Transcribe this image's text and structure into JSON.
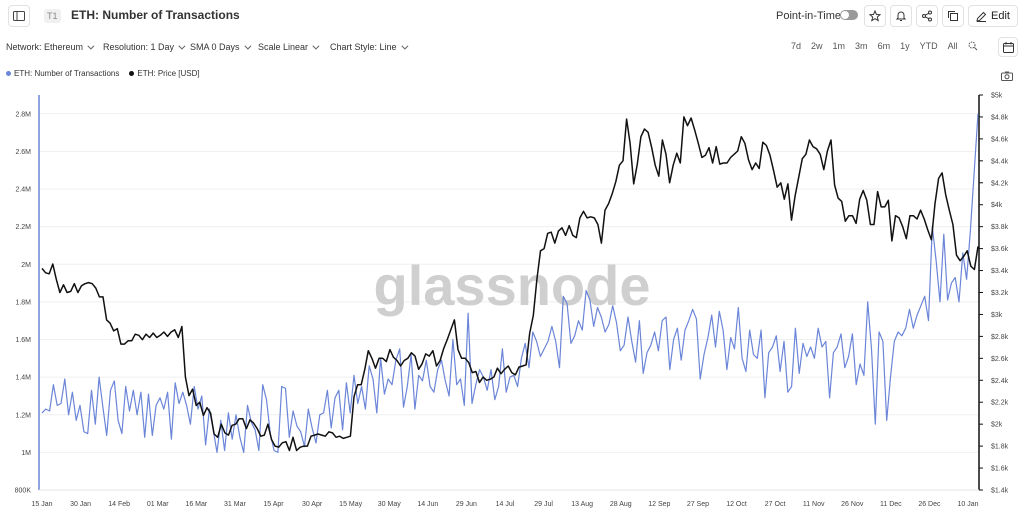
{
  "header": {
    "tier_badge": "T1",
    "title": "ETH: Number of Transactions",
    "point_in_time_label": "Point-in-Time",
    "edit_label": "Edit"
  },
  "toolbar": {
    "network": "Network: Ethereum",
    "resolution": "Resolution: 1 Day",
    "sma": "SMA 0 Days",
    "scale": "Scale Linear",
    "chart_style": "Chart Style: Line",
    "ranges": [
      "7d",
      "2w",
      "1m",
      "3m",
      "6m",
      "1y",
      "YTD",
      "All"
    ]
  },
  "colors": {
    "transactions": "#6b85d8",
    "price": "#111111",
    "accent": "#5b7be0"
  },
  "icons": [
    "sidebar-icon",
    "star-icon",
    "bell-icon",
    "share-icon",
    "copy-icon",
    "pencil-icon",
    "zoom-icon",
    "calendar-icon",
    "camera-icon"
  ],
  "watermark": "glassnode",
  "chart_data": {
    "type": "line",
    "x_labels": [
      "15 Jan",
      "30 Jan",
      "14 Feb",
      "01 Mar",
      "16 Mar",
      "31 Mar",
      "15 Apr",
      "30 Apr",
      "15 May",
      "30 May",
      "14 Jun",
      "29 Jun",
      "14 Jul",
      "29 Jul",
      "13 Aug",
      "28 Aug",
      "12 Sep",
      "27 Sep",
      "12 Oct",
      "27 Oct",
      "11 Nov",
      "26 Nov",
      "11 Dec",
      "26 Dec",
      "10 Jan"
    ],
    "y_left_labels": [
      "800K",
      "1M",
      "1.2M",
      "1.4M",
      "1.6M",
      "1.8M",
      "2M",
      "2.2M",
      "2.4M",
      "2.6M",
      "2.8M"
    ],
    "y_right_labels": [
      "$1.4k",
      "$1.6k",
      "$1.8k",
      "$2k",
      "$2.2k",
      "$2.4k",
      "$2.6k",
      "$2.8k",
      "$3k",
      "$3.2k",
      "$3.4k",
      "$3.6k",
      "$3.8k",
      "$4k",
      "$4.2k",
      "$4.4k",
      "$4.6k",
      "$4.8k",
      "$5k"
    ],
    "ylim_left": [
      800000,
      2900000
    ],
    "ylim_right": [
      1400,
      5000
    ],
    "grid": true,
    "legend_position": "top-left",
    "series": [
      {
        "name": "ETH: Number of Transactions",
        "axis": "left",
        "values": [
          1210000,
          1230000,
          1220000,
          1360000,
          1250000,
          1260000,
          1390000,
          1200000,
          1320000,
          1170000,
          1250000,
          1110000,
          1100000,
          1330000,
          1150000,
          1400000,
          1240000,
          1090000,
          1330000,
          1380000,
          1170000,
          1100000,
          1350000,
          1220000,
          1330000,
          1200000,
          1320000,
          1080000,
          1310000,
          1090000,
          1250000,
          1290000,
          1230000,
          1320000,
          1070000,
          1370000,
          1260000,
          1320000,
          1250000,
          1150000,
          1350000,
          1230000,
          1300000,
          1040000,
          1230000,
          1120000,
          1000000,
          1170000,
          1010000,
          1210000,
          1070000,
          1200000,
          1080000,
          1000000,
          1250000,
          1160000,
          1120000,
          1010000,
          1360000,
          1280000,
          1100000,
          1010000,
          1000000,
          1350000,
          1340000,
          1080000,
          1220000,
          1140000,
          1110000,
          1030000,
          1230000,
          1130000,
          1050000,
          1200000,
          1210000,
          1330000,
          1130000,
          1290000,
          1330000,
          1120000,
          1370000,
          1210000,
          1410000,
          1260000,
          1350000,
          1230000,
          1460000,
          1390000,
          1210000,
          1500000,
          1310000,
          1390000,
          1360000,
          1490000,
          1550000,
          1240000,
          1350000,
          1520000,
          1230000,
          1410000,
          1380000,
          1490000,
          1350000,
          1320000,
          1440000,
          1490000,
          1380000,
          1300000,
          1600000,
          1360000,
          1390000,
          1250000,
          1740000,
          1260000,
          1360000,
          1440000,
          1400000,
          1330000,
          1440000,
          1280000,
          1350000,
          1550000,
          1320000,
          1400000,
          1410000,
          1350000,
          1500000,
          1580000,
          1450000,
          1640000,
          1590000,
          1510000,
          1550000,
          1590000,
          1670000,
          1590000,
          1450000,
          1830000,
          1790000,
          1580000,
          1620000,
          1700000,
          1650000,
          1860000,
          1810000,
          1670000,
          1770000,
          1720000,
          1640000,
          1680000,
          1780000,
          1690000,
          1540000,
          1570000,
          1720000,
          1590000,
          1480000,
          1700000,
          1420000,
          1530000,
          1570000,
          1640000,
          1540000,
          1700000,
          1720000,
          1440000,
          1600000,
          1660000,
          1490000,
          1650000,
          1700000,
          1760000,
          1710000,
          1390000,
          1520000,
          1610000,
          1730000,
          1560000,
          1750000,
          1650000,
          1440000,
          1610000,
          1550000,
          1770000,
          1500000,
          1430000,
          1650000,
          1520000,
          1500000,
          1650000,
          1290000,
          1530000,
          1560000,
          1620000,
          1430000,
          1590000,
          1320000,
          1350000,
          1660000,
          1420000,
          1580000,
          1510000,
          1560000,
          1500000,
          1660000,
          1560000,
          1590000,
          1290000,
          1530000,
          1560000,
          1630000,
          1450000,
          1510000,
          1630000,
          1360000,
          1470000,
          1410000,
          1800000,
          1550000,
          1150000,
          1640000,
          1590000,
          1170000,
          1400000,
          1590000,
          1640000,
          1620000,
          1660000,
          1760000,
          1660000,
          1730000,
          1780000,
          1830000,
          1700000,
          2200000,
          2020000,
          1800000,
          2160000,
          1810000,
          1900000,
          1930000,
          1800000,
          2060000,
          1920000,
          2180000,
          2490000,
          2800000
        ]
      },
      {
        "name": "ETH: Price [USD]",
        "axis": "right",
        "values": [
          3420,
          3380,
          3370,
          3460,
          3320,
          3200,
          3270,
          3200,
          3210,
          3280,
          3200,
          3260,
          3280,
          3290,
          3280,
          3240,
          3160,
          3160,
          2950,
          2920,
          2850,
          2870,
          2730,
          2730,
          2760,
          2760,
          2820,
          2810,
          2770,
          2820,
          2790,
          2830,
          2790,
          2810,
          2840,
          2800,
          2840,
          2860,
          2790,
          2890,
          2430,
          2260,
          2320,
          2170,
          2200,
          2080,
          2150,
          2100,
          1910,
          1880,
          2000,
          1920,
          1900,
          1990,
          2000,
          2050,
          2050,
          1960,
          2040,
          2010,
          1960,
          1890,
          1900,
          2000,
          1860,
          1800,
          1790,
          1830,
          1840,
          1760,
          1880,
          1760,
          1790,
          1800,
          1800,
          1890,
          1900,
          1910,
          1900,
          1890,
          1930,
          1920,
          1880,
          1890,
          1870,
          1880,
          1890,
          2250,
          2360,
          2360,
          2500,
          2670,
          2600,
          2510,
          2600,
          2600,
          2570,
          2680,
          2610,
          2580,
          2530,
          2580,
          2600,
          2650,
          2620,
          2500,
          2550,
          2640,
          2620,
          2670,
          2530,
          2580,
          2690,
          2770,
          2860,
          2950,
          2680,
          2600,
          2600,
          2560,
          2470,
          2480,
          2380,
          2430,
          2400,
          2410,
          2430,
          2510,
          2460,
          2500,
          2530,
          2470,
          2450,
          2520,
          2530,
          2540,
          2830,
          2990,
          3320,
          3580,
          3600,
          3740,
          3750,
          3650,
          3760,
          3790,
          3720,
          3810,
          3720,
          3700,
          3880,
          3940,
          3880,
          3890,
          3880,
          3820,
          3650,
          3950,
          4010,
          4100,
          4210,
          4360,
          4400,
          4780,
          4560,
          4190,
          4370,
          4620,
          4690,
          4660,
          4520,
          4360,
          4260,
          4590,
          4460,
          4200,
          4360,
          4470,
          4380,
          4800,
          4720,
          4790,
          4680,
          4560,
          4430,
          4450,
          4520,
          4380,
          4530,
          4370,
          4380,
          4380,
          4430,
          4460,
          4490,
          4620,
          4560,
          4410,
          4320,
          4380,
          4330,
          4570,
          4540,
          4450,
          4310,
          4160,
          4200,
          4050,
          4190,
          3860,
          4080,
          4250,
          4420,
          4460,
          4590,
          4530,
          4510,
          4460,
          4320,
          4490,
          4590,
          4180,
          4060,
          4030,
          3850,
          3900,
          3900,
          3830,
          4050,
          4130,
          4040,
          3820,
          3820,
          4120,
          3980,
          3980,
          4040,
          3670,
          3900,
          3880,
          3800,
          3690,
          3900,
          3900,
          3870,
          3950,
          3870,
          3770,
          3680,
          4010,
          4240,
          4290,
          4090,
          3950,
          3820,
          3540,
          3490,
          3530,
          3580,
          3440,
          3410,
          3620
        ]
      }
    ]
  }
}
